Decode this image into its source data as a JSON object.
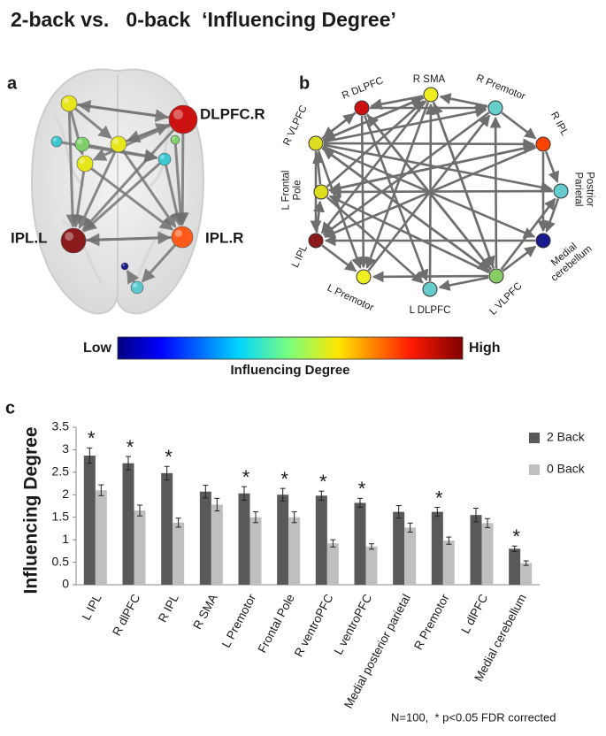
{
  "title": "2-back vs.   0-back  ‘Influencing Degree’",
  "panel_a": {
    "letter": "a",
    "labels": [
      "DLPFC.R",
      "IPL.L",
      "IPL.R"
    ]
  },
  "panel_b": {
    "letter": "b",
    "nodes": [
      {
        "label": [
          "R SMA"
        ]
      },
      {
        "label": [
          "R Premotor"
        ]
      },
      {
        "label": [
          "R IPL"
        ]
      },
      {
        "label": [
          "Postrior",
          "Parietal"
        ]
      },
      {
        "label": [
          "Medial",
          "cerebellum"
        ]
      },
      {
        "label": [
          "L VLPFC"
        ]
      },
      {
        "label": [
          "L DLPFC"
        ]
      },
      {
        "label": [
          "L Premotor"
        ]
      },
      {
        "label": [
          "L IPL"
        ]
      },
      {
        "label": [
          "L Frontal",
          "Pole"
        ]
      },
      {
        "label": [
          "R VLPFC"
        ]
      },
      {
        "label": [
          "R DLPFC"
        ]
      }
    ]
  },
  "colorbar": {
    "low": "Low",
    "high": "High",
    "label": "Influencing Degree"
  },
  "chart_data": {
    "type": "bar",
    "panel_letter": "c",
    "ylabel": "Influencing Degree",
    "categories": [
      "L IPL",
      "R dlPFC",
      "R IPL",
      "R SMA",
      "L Premotor",
      "Frontal Pole",
      "R ventroPFC",
      "L ventroPFC",
      "Medial posterior parietal",
      "R Premotor",
      "L dlPFC",
      "Medial cerebellum"
    ],
    "series": [
      {
        "name": "2 Back",
        "color": "#595959",
        "values": [
          2.87,
          2.7,
          2.48,
          2.07,
          2.03,
          2.0,
          1.98,
          1.82,
          1.62,
          1.62,
          1.55,
          0.8
        ],
        "errors": [
          0.17,
          0.15,
          0.15,
          0.14,
          0.15,
          0.14,
          0.1,
          0.1,
          0.14,
          0.1,
          0.15,
          0.06
        ]
      },
      {
        "name": "0 Back",
        "color": "#bfbfbf",
        "values": [
          2.1,
          1.65,
          1.38,
          1.78,
          1.5,
          1.5,
          0.92,
          0.85,
          1.27,
          0.98,
          1.37,
          0.48
        ],
        "errors": [
          0.12,
          0.12,
          0.1,
          0.14,
          0.12,
          0.12,
          0.08,
          0.06,
          0.1,
          0.08,
          0.1,
          0.05
        ]
      }
    ],
    "significance": [
      "*",
      "*",
      "*",
      null,
      "*",
      "*",
      "*",
      "*",
      null,
      "*",
      null,
      "*"
    ],
    "ylim": [
      0,
      3.5
    ],
    "yticks": [
      0,
      0.5,
      1,
      1.5,
      2,
      2.5,
      3,
      3.5
    ],
    "legend": "right",
    "note": "N=100,  * p<0.05 FDR corrected"
  }
}
